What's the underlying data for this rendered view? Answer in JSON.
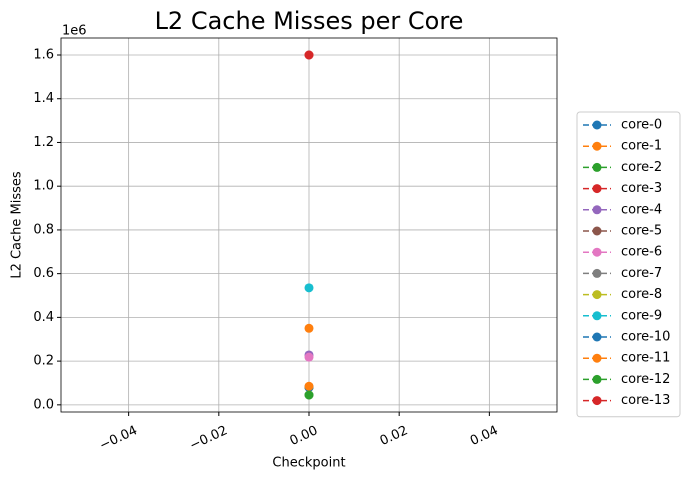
{
  "chart_data": {
    "type": "line",
    "title": "L2 Cache Misses per Core",
    "xlabel": "Checkpoint",
    "ylabel": "L2 Cache Misses",
    "y_offset_label": "1e6",
    "x": [
      0
    ],
    "series": [
      {
        "name": "core-0",
        "color": "#1f77b4",
        "values": [
          80000
        ]
      },
      {
        "name": "core-1",
        "color": "#ff7f0e",
        "values": [
          350000
        ]
      },
      {
        "name": "core-2",
        "color": "#2ca02c",
        "values": [
          45000
        ]
      },
      {
        "name": "core-3",
        "color": "#d62728",
        "values": [
          1600000
        ]
      },
      {
        "name": "core-4",
        "color": "#9467bd",
        "values": [
          228000
        ]
      },
      {
        "name": "core-5",
        "color": "#8c564b",
        "values": [
          80000
        ]
      },
      {
        "name": "core-6",
        "color": "#e377c2",
        "values": [
          218000
        ]
      },
      {
        "name": "core-7",
        "color": "#7f7f7f",
        "values": [
          80000
        ]
      },
      {
        "name": "core-8",
        "color": "#bcbd22",
        "values": [
          80000
        ]
      },
      {
        "name": "core-9",
        "color": "#17becf",
        "values": [
          535000
        ]
      },
      {
        "name": "core-10",
        "color": "#1f77b4",
        "values": [
          80000
        ]
      },
      {
        "name": "core-11",
        "color": "#ff7f0e",
        "values": [
          85000
        ]
      },
      {
        "name": "core-12",
        "color": "#2ca02c",
        "values": [
          45000
        ]
      },
      {
        "name": "core-13",
        "color": "#d62728",
        "values": [
          1600000
        ]
      }
    ],
    "xlim": [
      -0.055,
      0.055
    ],
    "xticks": [
      {
        "value": -0.04,
        "label": "−0.04"
      },
      {
        "value": -0.02,
        "label": "−0.02"
      },
      {
        "value": 0,
        "label": "0.00"
      },
      {
        "value": 0.02,
        "label": "0.02"
      },
      {
        "value": 0.04,
        "label": "0.04"
      }
    ],
    "ylim": [
      -32750,
      1677750
    ],
    "yticks": [
      {
        "value": 0,
        "label": "0.0"
      },
      {
        "value": 200000,
        "label": "0.2"
      },
      {
        "value": 400000,
        "label": "0.4"
      },
      {
        "value": 600000,
        "label": "0.6"
      },
      {
        "value": 800000,
        "label": "0.8"
      },
      {
        "value": 1000000,
        "label": "1.0"
      },
      {
        "value": 1200000,
        "label": "1.2"
      },
      {
        "value": 1400000,
        "label": "1.4"
      },
      {
        "value": 1600000,
        "label": "1.6"
      }
    ],
    "grid": true,
    "legend": "outside-right"
  }
}
